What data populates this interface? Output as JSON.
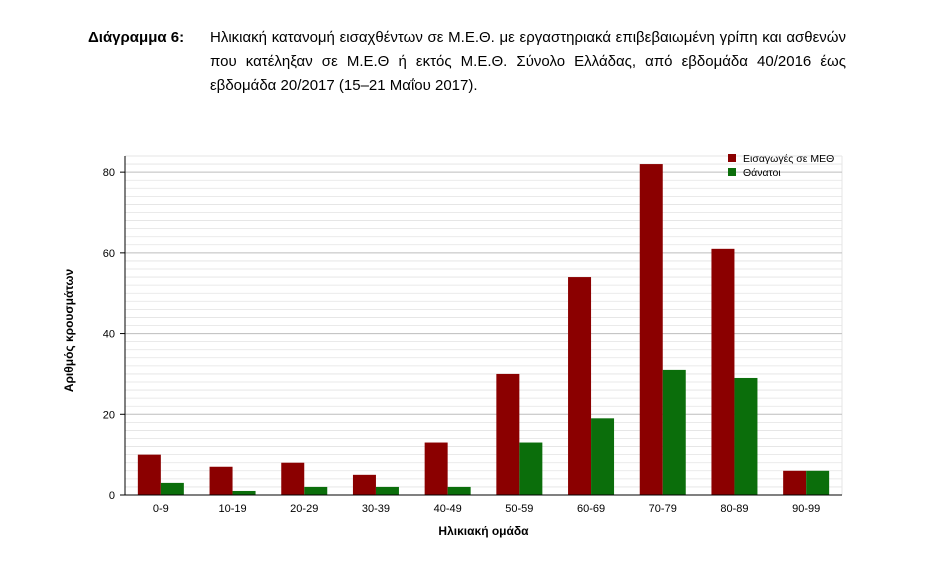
{
  "caption": {
    "label": "Διάγραμμα 6:",
    "text": "Ηλικιακή κατανομή εισαχθέντων σε Μ.Ε.Θ. με εργαστηριακά επιβεβαιωμένη γρίπη και ασθενών που κατέληξαν σε Μ.Ε.Θ ή εκτός Μ.Ε.Θ. Σύνολο Ελλάδας, από εβδομάδα 40/2016 έως εβδομάδα 20/2017 (15–21 Μαΐου 2017)."
  },
  "chart_data": {
    "type": "bar",
    "categories": [
      "0-9",
      "10-19",
      "20-29",
      "30-39",
      "40-49",
      "50-59",
      "60-69",
      "70-79",
      "80-89",
      "90-99"
    ],
    "series": [
      {
        "name": "Εισαγωγές σε ΜΕΘ",
        "color": "#8b0000",
        "values": [
          10,
          7,
          8,
          5,
          13,
          30,
          54,
          82,
          61,
          6
        ]
      },
      {
        "name": "Θάνατοι",
        "color": "#0b6e0b",
        "values": [
          3,
          1,
          2,
          2,
          2,
          13,
          19,
          31,
          29,
          6
        ]
      }
    ],
    "xlabel": "Ηλικιακή ομάδα",
    "ylabel": "Αριθμός κρουσμάτων",
    "ylim": [
      0,
      84
    ],
    "yticks": [
      0,
      20,
      40,
      60,
      80
    ],
    "grid": true,
    "legend": "top-right"
  }
}
